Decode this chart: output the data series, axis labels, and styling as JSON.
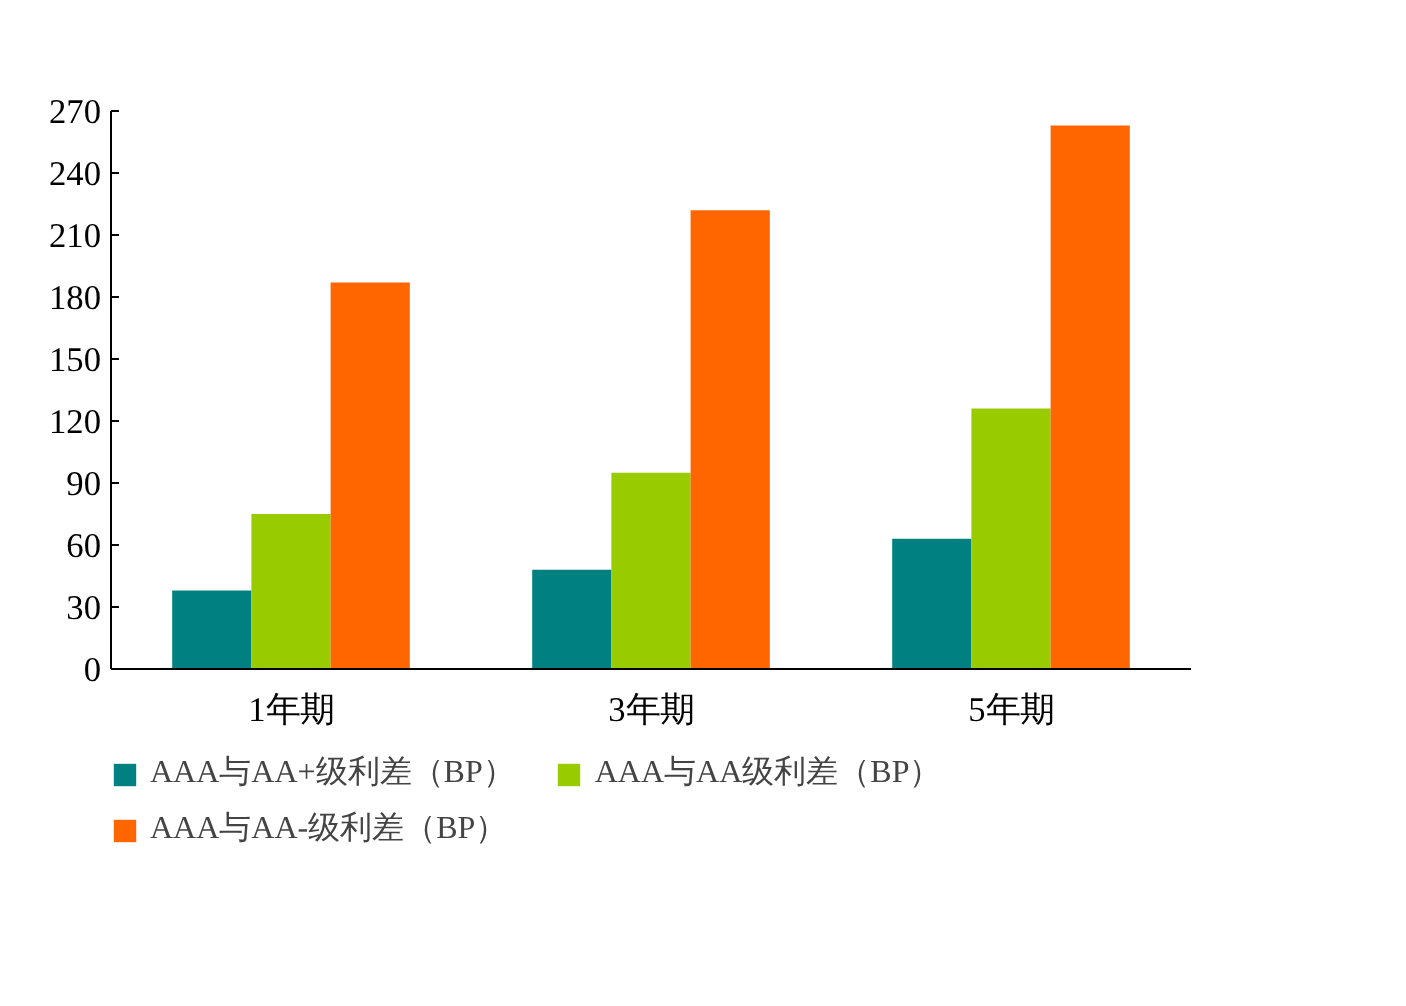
{
  "chart_data": {
    "type": "bar",
    "categories": [
      "1年期",
      "3年期",
      "5年期"
    ],
    "series": [
      {
        "name": "AAA与AA+级利差（BP）",
        "color": "#008080",
        "values": [
          38,
          48,
          63
        ]
      },
      {
        "name": "AAA与AA级利差（BP）",
        "color": "#99cc00",
        "values": [
          75,
          95,
          126
        ]
      },
      {
        "name": "AAA与AA-级利差（BP）",
        "color": "#ff6600",
        "values": [
          187,
          222,
          263
        ]
      }
    ],
    "ylim": [
      0,
      270
    ],
    "yticks": [
      0,
      30,
      60,
      90,
      120,
      150,
      180,
      210,
      240,
      270
    ],
    "grid": false,
    "legend": "bottom"
  }
}
